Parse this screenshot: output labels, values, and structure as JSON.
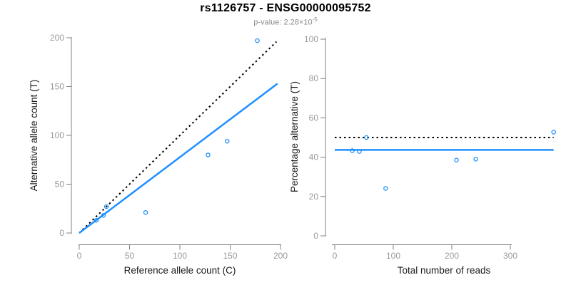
{
  "header": {
    "title": "rs1126757 - ENSG00000095752",
    "subtitle_prefix": "p-value: 2.28×10",
    "subtitle_exponent": "-5"
  },
  "colors": {
    "accent_blue": "#1E90FF",
    "identity_black": "#000000",
    "axis_line": "#808080",
    "tick_label": "#999999",
    "axis_title": "#1a1a1a"
  },
  "chart_data": [
    {
      "type": "scatter",
      "name": "allele-count-scatter",
      "xlabel": "Reference allele count (C)",
      "ylabel": "Alternative allele count (T)",
      "xlim": [
        0,
        200
      ],
      "ylim": [
        0,
        200
      ],
      "xticks": [
        0,
        50,
        100,
        150,
        200
      ],
      "yticks": [
        0,
        50,
        100,
        150,
        200
      ],
      "grid": false,
      "legend": "none",
      "points": [
        [
          17,
          13
        ],
        [
          24,
          18
        ],
        [
          27,
          27
        ],
        [
          66,
          21
        ],
        [
          128,
          80
        ],
        [
          147,
          94
        ],
        [
          177,
          197
        ]
      ],
      "lines": [
        {
          "name": "identity-line",
          "style": "dotted",
          "color": "#000000",
          "x1": 0,
          "y1": 0,
          "x2": 196,
          "y2": 196
        },
        {
          "name": "fit-line",
          "style": "solid",
          "color": "#1E90FF",
          "x1": 0,
          "y1": 0,
          "x2": 197,
          "y2": 153
        }
      ]
    },
    {
      "type": "scatter",
      "name": "percentage-alternative-scatter",
      "xlabel": "Total number of reads",
      "ylabel": "Percentage alternative (T)",
      "xlim": [
        0,
        374
      ],
      "ylim": [
        0,
        100
      ],
      "xticks": [
        0,
        100,
        200,
        300
      ],
      "yticks": [
        0,
        20,
        40,
        60,
        80,
        100
      ],
      "grid": false,
      "legend": "none",
      "points": [
        [
          30,
          43.3
        ],
        [
          42,
          42.9
        ],
        [
          54,
          50.0
        ],
        [
          87,
          24.1
        ],
        [
          208,
          38.5
        ],
        [
          241,
          39.0
        ],
        [
          374,
          52.7
        ]
      ],
      "lines": [
        {
          "name": "fifty-percent-line",
          "style": "dotted",
          "color": "#000000",
          "x1": 0,
          "y1": 50,
          "x2": 374,
          "y2": 50
        },
        {
          "name": "mean-percentage-line",
          "style": "solid",
          "color": "#1E90FF",
          "x1": 0,
          "y1": 43.7,
          "x2": 374,
          "y2": 43.7
        }
      ]
    }
  ]
}
